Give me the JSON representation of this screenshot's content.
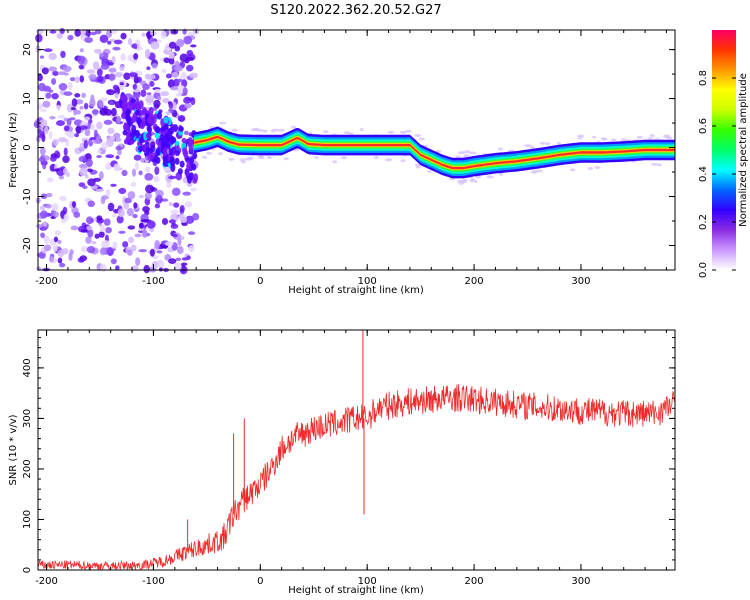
{
  "title": "S120.2022.362.20.52.G27",
  "chart_data": [
    {
      "type": "heatmap",
      "xlabel": "Height of straight line (km)",
      "ylabel": "Frequency (Hz)",
      "xlim": [
        -208,
        388
      ],
      "ylim": [
        -25,
        24
      ],
      "xticks": [
        -200,
        -100,
        0,
        100,
        200,
        300
      ],
      "yticks": [
        -20,
        -10,
        0,
        10,
        20
      ],
      "colorbar": {
        "label": "Normalized spectral amplitude",
        "range": [
          0.0,
          1.0
        ],
        "ticks": [
          "0.0",
          "0.2",
          "0.4",
          "0.6",
          "0.8"
        ],
        "colors": [
          "#ffffff",
          "#cc99ff",
          "#8a2be2",
          "#3300ff",
          "#0066ff",
          "#00ffff",
          "#00ff66",
          "#33ff00",
          "#ccff00",
          "#ffff00",
          "#ff9900",
          "#ff3300",
          "#ff0066"
        ]
      },
      "ridge": {
        "x": [
          -62,
          -50,
          -40,
          -30,
          -20,
          0,
          20,
          35,
          45,
          60,
          80,
          100,
          120,
          140,
          150,
          160,
          170,
          180,
          190,
          200,
          220,
          240,
          260,
          280,
          300,
          320,
          340,
          360,
          388
        ],
        "freq": [
          1.0,
          1.5,
          2.2,
          1.2,
          0.6,
          0.5,
          0.5,
          2.0,
          0.7,
          0.5,
          0.5,
          0.5,
          0.5,
          0.5,
          -1.5,
          -2.5,
          -3.5,
          -4.2,
          -4.2,
          -3.8,
          -3.2,
          -2.8,
          -2.2,
          -1.5,
          -1.0,
          -1.0,
          -0.8,
          -0.5,
          -0.5
        ]
      },
      "noise_region_x": [
        -208,
        -60
      ]
    },
    {
      "type": "line",
      "xlabel": "Height of straight line (km)",
      "ylabel": "SNR (10 * v/v)",
      "xlim": [
        -208,
        388
      ],
      "ylim": [
        0,
        475
      ],
      "xticks": [
        -200,
        -100,
        0,
        100,
        200,
        300
      ],
      "yticks": [
        0,
        100,
        200,
        300,
        400
      ],
      "color": "#ee2a2a",
      "envelope": {
        "x": [
          -208,
          -180,
          -140,
          -110,
          -90,
          -70,
          -50,
          -35,
          -25,
          -15,
          -10,
          0,
          10,
          20,
          30,
          50,
          70,
          90,
          95,
          100,
          110,
          130,
          150,
          170,
          190,
          210,
          250,
          300,
          340,
          370,
          388
        ],
        "y": [
          10,
          10,
          8,
          10,
          18,
          35,
          50,
          60,
          110,
          140,
          150,
          170,
          200,
          240,
          260,
          280,
          290,
          300,
          300,
          300,
          320,
          330,
          335,
          340,
          340,
          335,
          325,
          315,
          310,
          310,
          330
        ]
      },
      "spikes": [
        {
          "x": -68,
          "y": 100
        },
        {
          "x": -25,
          "y": 270
        },
        {
          "x": -15,
          "y": 300
        },
        {
          "x": 96,
          "y": 475
        },
        {
          "x": 97,
          "y": 110
        }
      ]
    }
  ]
}
